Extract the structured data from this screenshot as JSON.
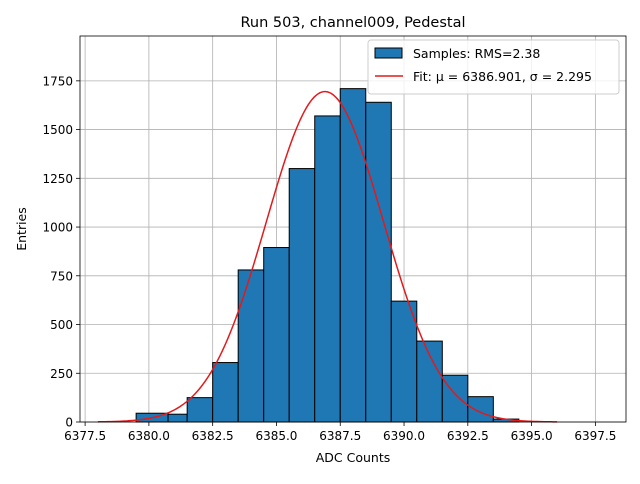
{
  "chart_data": {
    "type": "bar",
    "title": "Run 503, channel009, Pedestal",
    "xlabel": "ADC Counts",
    "ylabel": "Entries",
    "xlim": [
      6377.3,
      6398.7
    ],
    "ylim": [
      0,
      1980
    ],
    "grid": true,
    "legend_position": "top-right",
    "x_ticks": [
      6377.5,
      6380.0,
      6382.5,
      6385.0,
      6387.5,
      6390.0,
      6392.5,
      6395.0,
      6397.5
    ],
    "x_tick_labels": [
      "6377.5",
      "6380.0",
      "6382.5",
      "6385.0",
      "6387.5",
      "6390.0",
      "6392.5",
      "6395.0",
      "6397.5"
    ],
    "y_ticks": [
      0,
      250,
      500,
      750,
      1000,
      1250,
      1500,
      1750
    ],
    "y_tick_labels": [
      "0",
      "250",
      "500",
      "750",
      "1000",
      "1250",
      "1500",
      "1750"
    ],
    "histogram": {
      "name": "Samples: RMS=2.38",
      "color": "#1f77b4",
      "edge_color": "#000000",
      "bins": [
        {
          "x0": 6379.5,
          "x1": 6380.75,
          "value": 45
        },
        {
          "x0": 6380.75,
          "x1": 6381.5,
          "value": 40
        },
        {
          "x0": 6381.5,
          "x1": 6382.5,
          "value": 125
        },
        {
          "x0": 6382.5,
          "x1": 6383.5,
          "value": 305
        },
        {
          "x0": 6383.5,
          "x1": 6384.5,
          "value": 780
        },
        {
          "x0": 6384.5,
          "x1": 6385.5,
          "value": 895
        },
        {
          "x0": 6385.5,
          "x1": 6386.5,
          "value": 1300
        },
        {
          "x0": 6386.5,
          "x1": 6387.5,
          "value": 1570
        },
        {
          "x0": 6387.5,
          "x1": 6388.5,
          "value": 1710
        },
        {
          "x0": 6388.5,
          "x1": 6389.5,
          "value": 1640
        },
        {
          "x0": 6389.5,
          "x1": 6390.5,
          "value": 620
        },
        {
          "x0": 6390.5,
          "x1": 6391.5,
          "value": 415
        },
        {
          "x0": 6391.5,
          "x1": 6392.5,
          "value": 240
        },
        {
          "x0": 6392.5,
          "x1": 6393.5,
          "value": 130
        },
        {
          "x0": 6393.5,
          "x1": 6394.5,
          "value": 15
        }
      ]
    },
    "fit": {
      "name": "Fit: μ = 6386.901, σ = 2.295",
      "color": "#e31a1c",
      "mu": 6386.901,
      "sigma": 2.295,
      "amplitude": 1695,
      "x_start": 6378.0,
      "x_end": 6396.0
    }
  }
}
